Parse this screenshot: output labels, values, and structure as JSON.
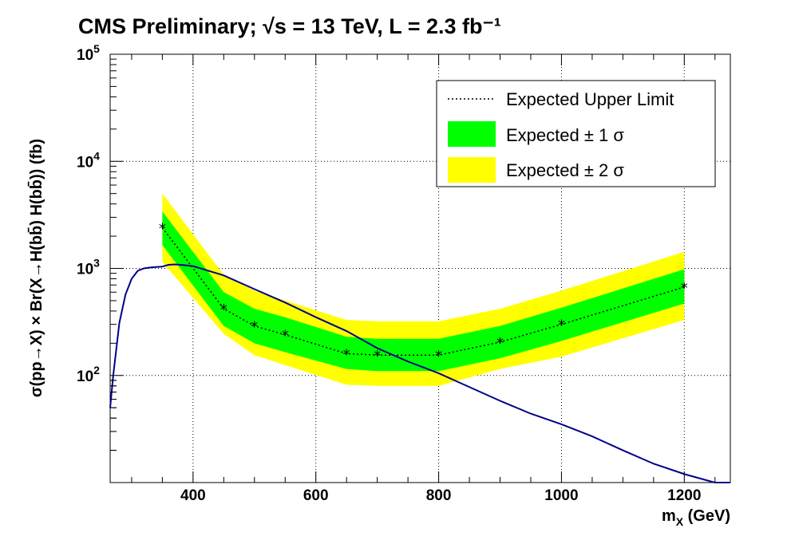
{
  "chart_data": {
    "type": "line",
    "title": "CMS Preliminary;  √s = 13 TeV, L = 2.3 fb⁻¹",
    "xlabel": "m_X (GeV)",
    "ylabel": "σ(pp→X) × Br(X→H(bb̄) H(bb̄)) (fb)",
    "xlim": [
      265,
      1275
    ],
    "ylim": [
      10,
      100000
    ],
    "y_scale": "log",
    "grid": true,
    "x_ticks": [
      400,
      600,
      800,
      1000,
      1200
    ],
    "x_tick_labels": [
      "400",
      "600",
      "800",
      "1000",
      "1200"
    ],
    "y_tick_labels": [
      {
        "value": 100,
        "base": "10",
        "exp": "2"
      },
      {
        "value": 1000,
        "base": "10",
        "exp": "3"
      },
      {
        "value": 10000,
        "base": "10",
        "exp": "4"
      },
      {
        "value": 100000,
        "base": "10",
        "exp": "5"
      }
    ],
    "legend": {
      "position": "top-right",
      "entries": [
        {
          "label": "Expected Upper Limit",
          "style": "dotted-line"
        },
        {
          "label": "Expected ± 1 σ",
          "color": "#00ff00"
        },
        {
          "label": "Expected ± 2 σ",
          "color": "#ffff00"
        }
      ]
    },
    "mass_points": [
      350,
      450,
      500,
      550,
      650,
      700,
      800,
      900,
      1000,
      1200
    ],
    "expected": [
      2400,
      420,
      290,
      240,
      160,
      155,
      155,
      205,
      300,
      670
    ],
    "band_1sigma": {
      "low": [
        1650,
        290,
        200,
        165,
        115,
        110,
        110,
        145,
        210,
        470
      ],
      "high": [
        3400,
        600,
        420,
        350,
        230,
        220,
        220,
        290,
        430,
        980
      ]
    },
    "band_2sigma": {
      "low": [
        1150,
        245,
        155,
        125,
        82,
        80,
        80,
        115,
        150,
        330
      ],
      "high": [
        5000,
        870,
        620,
        500,
        330,
        320,
        320,
        420,
        620,
        1430
      ]
    },
    "theory_curve": {
      "name": "",
      "color": "#00008b",
      "x": [
        265,
        270,
        280,
        290,
        300,
        310,
        320,
        330,
        340,
        350,
        360,
        370,
        380,
        400,
        450,
        500,
        550,
        600,
        650,
        700,
        750,
        800,
        850,
        900,
        950,
        1000,
        1050,
        1100,
        1150,
        1200,
        1250,
        1275
      ],
      "y": [
        50,
        100,
        310,
        570,
        800,
        950,
        1000,
        1020,
        1030,
        1040,
        1080,
        1090,
        1080,
        1050,
        860,
        640,
        480,
        350,
        260,
        180,
        135,
        105,
        78,
        58,
        44,
        35,
        27,
        20,
        15,
        12,
        9.5,
        8.5
      ]
    },
    "colors": {
      "expected_line": "#000000",
      "band_1sigma": "#00ff00",
      "band_2sigma": "#ffff00",
      "theory": "#00008b",
      "grid": "#000000"
    }
  }
}
